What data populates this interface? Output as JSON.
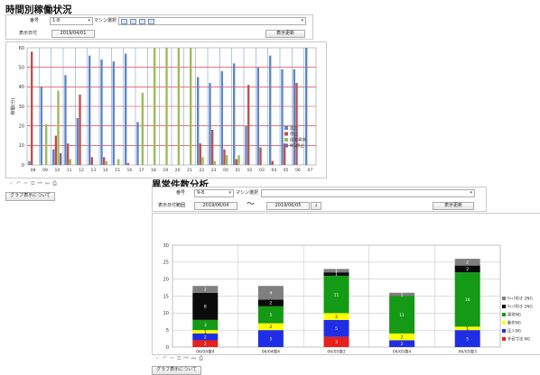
{
  "top": {
    "title": "時間別稼働状況",
    "form": {
      "kiban_label": "番号",
      "kiban_value": "1-8",
      "machine_label": "マシン選択",
      "machine_value": "",
      "date_label": "表示日付",
      "date_value": "2019/04/01",
      "refresh_label": "表示更新"
    },
    "help_label": "グラフ表示について"
  },
  "bottom": {
    "title": "異常件数分析",
    "form": {
      "kiban_label": "番号",
      "kiban_value": "9-8",
      "machine_label": "マシン選択",
      "machine_value": "",
      "range_label": "表示日付範囲",
      "date_from": "2019/06/04",
      "tilde": "〜",
      "date_to": "2019/06/05",
      "refresh_label": "表示更新"
    },
    "help_label": "グラフ表示について"
  },
  "chart_data": [
    {
      "type": "bar",
      "title": "",
      "xlabel": "",
      "ylabel": "稼働(分)",
      "ylim": [
        0,
        60
      ],
      "yticks": [
        0,
        10,
        20,
        30,
        40,
        50,
        60
      ],
      "grid": true,
      "legend_position": "right",
      "categories": [
        "08",
        "09",
        "10",
        "11",
        "12",
        "13",
        "14",
        "15",
        "16",
        "17",
        "18",
        "19",
        "20",
        "21",
        "22",
        "23",
        "00",
        "01",
        "02",
        "03",
        "04",
        "05",
        "06",
        "07"
      ],
      "series": [
        {
          "name": "加工",
          "color": "#5b87c7",
          "values": [
            2,
            40,
            8,
            46,
            24,
            56,
            54,
            53,
            57,
            22,
            0,
            0,
            0,
            0,
            45,
            42,
            48,
            52,
            20,
            50,
            56,
            49,
            49,
            60
          ]
        },
        {
          "name": "停止",
          "color": "#c0504d",
          "values": [
            58,
            0,
            15,
            11,
            36,
            4,
            4,
            0,
            1,
            0,
            0,
            0,
            0,
            0,
            11,
            18,
            8,
            3,
            41,
            9,
            2,
            11,
            42,
            0
          ]
        },
        {
          "name": "段取異常",
          "color": "#9bbb59",
          "values": [
            0,
            21,
            38,
            3,
            0,
            0,
            2,
            3,
            0,
            37,
            60,
            60,
            60,
            60,
            4,
            2,
            5,
            5,
            0,
            0,
            0,
            0,
            0,
            0
          ]
        },
        {
          "name": "NG停止",
          "color": "#8064a2",
          "values": [
            0,
            0,
            6,
            0,
            0,
            0,
            0,
            0,
            0,
            0,
            0,
            0,
            0,
            0,
            0,
            0,
            0,
            0,
            0,
            0,
            0,
            0,
            0,
            0
          ]
        }
      ]
    },
    {
      "type": "bar",
      "stacked": true,
      "title": "",
      "xlabel": "",
      "ylabel": "",
      "ylim": [
        0,
        30
      ],
      "yticks": [
        0,
        5,
        10,
        15,
        20,
        25,
        30
      ],
      "grid": true,
      "legend_position": "right",
      "categories": [
        "06/04夜4",
        "06/04夜4",
        "06/05夜3",
        "06/05夜4",
        "06/05夜3"
      ],
      "series": [
        {
          "name": "外径寸法 NG",
          "color": "#e8201b",
          "values": [
            2,
            0,
            3,
            0,
            0
          ]
        },
        {
          "name": "圧入NG",
          "color": "#1f2ee6",
          "values": [
            2,
            5,
            5,
            2,
            5
          ]
        },
        {
          "name": "動作NG",
          "color": "#ffff00",
          "values": [
            1,
            2,
            2,
            2,
            1
          ]
        },
        {
          "name": "異常NG",
          "color": "#149a14",
          "values": [
            3,
            5,
            11,
            11,
            16
          ]
        },
        {
          "name": "ﾁｬｯｸ叩き 1NG",
          "color": "#0a0a0a",
          "values": [
            8,
            2,
            1,
            0,
            2
          ]
        },
        {
          "name": "ﾁｬｯｸ叩き 2NG",
          "color": "#7f7f7f",
          "values": [
            2,
            4,
            1,
            1,
            2
          ]
        }
      ]
    }
  ]
}
